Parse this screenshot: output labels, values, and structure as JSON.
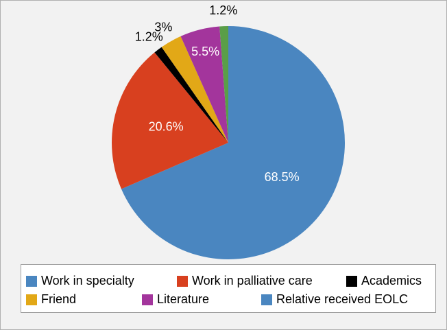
{
  "chart_data": {
    "type": "pie",
    "categories": [
      "Work in specialty",
      "Work in palliative care",
      "Academics",
      "Friend",
      "Literature",
      "Relative received EOLC"
    ],
    "values": [
      68.5,
      20.6,
      1.2,
      3,
      5.5,
      1.2
    ],
    "value_labels": [
      "68.5%",
      "20.6%",
      "1.2%",
      "3%",
      "5.5%",
      "1.2%"
    ],
    "colors": [
      "#4a86c0",
      "#d8401f",
      "#000000",
      "#e2a817",
      "#a3359c",
      "#5a9e48"
    ],
    "legend_colors": [
      "#4a86c0",
      "#d8401f",
      "#000000",
      "#e2a817",
      "#a3359c",
      "#4a86c0"
    ],
    "legend": "bottom"
  }
}
